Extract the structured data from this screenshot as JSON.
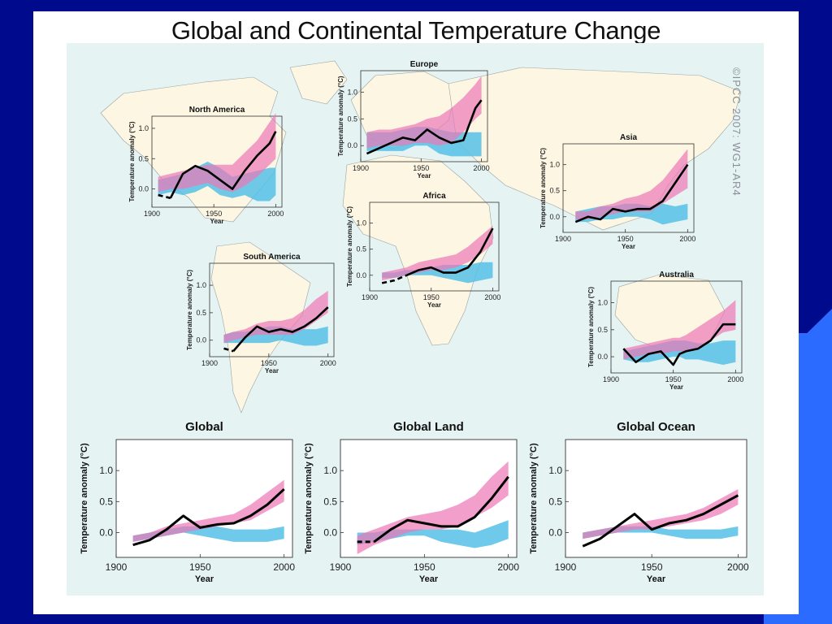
{
  "title": "Global and Continental Temperature Change",
  "credit": "©IPCC 2007: WG1-AR4",
  "colors": {
    "slide_bg": "#000a8c",
    "slide_accent": "#2b6bff",
    "map_ocean": "#e6f3f3",
    "land": "#fdf6e3",
    "natural_band": "#56bfe6",
    "all_forcing_band": "#ec77b5",
    "observations": "#000000"
  },
  "chart_data": [
    {
      "type": "line",
      "title": "North America",
      "xlabel": "Year",
      "ylabel": "Temperature anomaly (°C)",
      "xlim": [
        1900,
        2005
      ],
      "ylim": [
        -0.3,
        1.2
      ],
      "xticks": [
        1900,
        1950,
        2000
      ],
      "yticks": [
        0.0,
        0.5,
        1.0
      ],
      "x": [
        1905,
        1915,
        1925,
        1935,
        1945,
        1955,
        1965,
        1975,
        1985,
        1995,
        2000
      ],
      "series": [
        {
          "role": "observed",
          "values": [
            -0.1,
            -0.15,
            0.25,
            0.38,
            0.3,
            0.15,
            0.0,
            0.3,
            0.55,
            0.75,
            0.95
          ],
          "dashed_until": 1915
        },
        {
          "role": "natural",
          "lo": [
            -0.1,
            -0.05,
            -0.1,
            -0.05,
            0.05,
            -0.1,
            -0.15,
            -0.1,
            -0.2,
            -0.2,
            -0.1
          ],
          "hi": [
            0.15,
            0.2,
            0.25,
            0.35,
            0.45,
            0.35,
            0.2,
            0.25,
            0.3,
            0.35,
            0.35
          ]
        },
        {
          "role": "all_forcings",
          "lo": [
            -0.05,
            0.0,
            0.0,
            0.05,
            0.1,
            0.0,
            -0.05,
            0.05,
            0.2,
            0.4,
            0.5
          ],
          "hi": [
            0.2,
            0.25,
            0.3,
            0.35,
            0.4,
            0.4,
            0.4,
            0.6,
            0.8,
            1.1,
            1.25
          ]
        }
      ]
    },
    {
      "type": "line",
      "title": "Europe",
      "xlabel": "Year",
      "ylabel": "Temperature anomaly (°C)",
      "xlim": [
        1900,
        2005
      ],
      "ylim": [
        -0.3,
        1.4
      ],
      "xticks": [
        1900,
        1950,
        2000
      ],
      "yticks": [
        0.0,
        0.5,
        1.0
      ],
      "x": [
        1905,
        1915,
        1925,
        1935,
        1945,
        1955,
        1965,
        1975,
        1985,
        1995,
        2000
      ],
      "series": [
        {
          "role": "observed",
          "values": [
            -0.15,
            -0.05,
            0.05,
            0.15,
            0.1,
            0.3,
            0.15,
            0.05,
            0.1,
            0.7,
            0.85
          ],
          "dashed_until": null
        },
        {
          "role": "natural",
          "lo": [
            -0.1,
            -0.1,
            -0.1,
            -0.1,
            0.0,
            0.0,
            -0.15,
            -0.2,
            -0.2,
            -0.2,
            -0.2
          ],
          "hi": [
            0.25,
            0.25,
            0.25,
            0.3,
            0.35,
            0.35,
            0.3,
            0.25,
            0.25,
            0.25,
            0.25
          ]
        },
        {
          "role": "all_forcings",
          "lo": [
            -0.05,
            0.0,
            0.0,
            0.0,
            0.05,
            0.05,
            0.0,
            0.05,
            0.25,
            0.5,
            0.6
          ],
          "hi": [
            0.25,
            0.3,
            0.3,
            0.35,
            0.4,
            0.5,
            0.55,
            0.7,
            0.9,
            1.15,
            1.3
          ]
        }
      ]
    },
    {
      "type": "line",
      "title": "Asia",
      "xlabel": "Year",
      "ylabel": "Temperature anomaly (°C)",
      "xlim": [
        1900,
        2005
      ],
      "ylim": [
        -0.3,
        1.4
      ],
      "xticks": [
        1900,
        1950,
        2000
      ],
      "yticks": [
        0.0,
        0.5,
        1.0
      ],
      "x": [
        1910,
        1920,
        1930,
        1940,
        1950,
        1960,
        1970,
        1980,
        1990,
        2000
      ],
      "series": [
        {
          "role": "observed",
          "values": [
            -0.1,
            0.0,
            -0.05,
            0.15,
            0.1,
            0.15,
            0.15,
            0.3,
            0.65,
            1.0
          ],
          "dashed_until": null
        },
        {
          "role": "natural",
          "lo": [
            -0.1,
            -0.1,
            -0.05,
            -0.05,
            0.0,
            0.0,
            -0.05,
            -0.15,
            -0.1,
            -0.05
          ],
          "hi": [
            0.1,
            0.15,
            0.2,
            0.2,
            0.25,
            0.25,
            0.2,
            0.25,
            0.2,
            0.25
          ]
        },
        {
          "role": "all_forcings",
          "lo": [
            -0.05,
            -0.05,
            0.0,
            0.05,
            0.1,
            0.1,
            0.1,
            0.25,
            0.4,
            0.55
          ],
          "hi": [
            0.1,
            0.1,
            0.2,
            0.25,
            0.35,
            0.4,
            0.5,
            0.7,
            1.0,
            1.3
          ]
        }
      ]
    },
    {
      "type": "line",
      "title": "Africa",
      "xlabel": "Year",
      "ylabel": "Temperature anomaly (°C)",
      "xlim": [
        1900,
        2005
      ],
      "ylim": [
        -0.3,
        1.4
      ],
      "xticks": [
        1900,
        1950,
        2000
      ],
      "yticks": [
        0.0,
        0.5,
        1.0
      ],
      "x": [
        1910,
        1920,
        1930,
        1940,
        1950,
        1960,
        1970,
        1980,
        1990,
        2000
      ],
      "series": [
        {
          "role": "observed",
          "values": [
            -0.15,
            -0.1,
            0.0,
            0.1,
            0.15,
            0.05,
            0.05,
            0.15,
            0.45,
            0.9
          ],
          "dashed_until": 1930
        },
        {
          "role": "natural",
          "lo": [
            -0.05,
            -0.05,
            0.0,
            0.0,
            0.0,
            -0.05,
            -0.1,
            -0.15,
            -0.1,
            -0.05
          ],
          "hi": [
            0.05,
            0.05,
            0.1,
            0.1,
            0.15,
            0.2,
            0.2,
            0.2,
            0.25,
            0.25
          ]
        },
        {
          "role": "all_forcings",
          "lo": [
            -0.1,
            -0.05,
            0.0,
            0.05,
            0.1,
            0.1,
            0.15,
            0.25,
            0.4,
            0.6
          ],
          "hi": [
            0.05,
            0.1,
            0.15,
            0.25,
            0.3,
            0.35,
            0.4,
            0.55,
            0.75,
            0.95
          ]
        }
      ]
    },
    {
      "type": "line",
      "title": "South America",
      "xlabel": "Year",
      "ylabel": "Temperature anomaly (°C)",
      "xlim": [
        1900,
        2005
      ],
      "ylim": [
        -0.3,
        1.4
      ],
      "xticks": [
        1900,
        1950,
        2000
      ],
      "yticks": [
        0.0,
        0.5,
        1.0
      ],
      "x": [
        1912,
        1920,
        1930,
        1940,
        1950,
        1960,
        1970,
        1980,
        1990,
        2000
      ],
      "series": [
        {
          "role": "observed",
          "values": [
            -0.15,
            -0.2,
            0.05,
            0.25,
            0.15,
            0.2,
            0.15,
            0.25,
            0.4,
            0.6
          ],
          "dashed_until": 1920
        },
        {
          "role": "natural",
          "lo": [
            -0.05,
            -0.05,
            -0.05,
            -0.05,
            -0.05,
            0.0,
            -0.05,
            -0.1,
            -0.1,
            -0.05
          ],
          "hi": [
            0.1,
            0.15,
            0.15,
            0.2,
            0.25,
            0.25,
            0.2,
            0.2,
            0.2,
            0.25
          ]
        },
        {
          "role": "all_forcings",
          "lo": [
            -0.05,
            0.0,
            0.05,
            0.1,
            0.1,
            0.1,
            0.1,
            0.2,
            0.35,
            0.5
          ],
          "hi": [
            0.1,
            0.15,
            0.2,
            0.3,
            0.35,
            0.35,
            0.4,
            0.55,
            0.75,
            0.9
          ]
        }
      ]
    },
    {
      "type": "line",
      "title": "Australia",
      "xlabel": "Year",
      "ylabel": "Temperature anomaly (°C)",
      "xlim": [
        1900,
        2005
      ],
      "ylim": [
        -0.3,
        1.4
      ],
      "xticks": [
        1900,
        1950,
        2000
      ],
      "yticks": [
        0.0,
        0.5,
        1.0
      ],
      "x": [
        1910,
        1920,
        1930,
        1940,
        1950,
        1955,
        1960,
        1970,
        1980,
        1990,
        2000
      ],
      "series": [
        {
          "role": "observed",
          "values": [
            0.15,
            -0.1,
            0.05,
            0.1,
            -0.15,
            0.05,
            0.1,
            0.15,
            0.3,
            0.6,
            0.6
          ],
          "dashed_until": null
        },
        {
          "role": "natural",
          "lo": [
            -0.05,
            -0.1,
            -0.1,
            -0.05,
            0.0,
            0.0,
            -0.05,
            -0.05,
            -0.1,
            -0.15,
            -0.1
          ],
          "hi": [
            0.1,
            0.15,
            0.2,
            0.25,
            0.3,
            0.3,
            0.3,
            0.25,
            0.25,
            0.3,
            0.3
          ]
        },
        {
          "role": "all_forcings",
          "lo": [
            -0.05,
            0.0,
            0.05,
            0.05,
            0.1,
            0.1,
            0.1,
            0.15,
            0.3,
            0.45,
            0.5
          ],
          "hi": [
            0.15,
            0.2,
            0.25,
            0.3,
            0.35,
            0.35,
            0.4,
            0.55,
            0.7,
            0.85,
            1.05
          ]
        }
      ]
    },
    {
      "type": "line",
      "title": "Global",
      "xlabel": "Year",
      "ylabel": "Temperature anomaly (°C)",
      "xlim": [
        1900,
        2005
      ],
      "ylim": [
        -0.4,
        1.5
      ],
      "xticks": [
        1900,
        1950,
        2000
      ],
      "yticks": [
        0.0,
        0.5,
        1.0
      ],
      "x": [
        1910,
        1920,
        1930,
        1940,
        1950,
        1960,
        1970,
        1980,
        1990,
        2000
      ],
      "series": [
        {
          "role": "observed",
          "values": [
            -0.2,
            -0.12,
            0.05,
            0.27,
            0.08,
            0.13,
            0.15,
            0.27,
            0.45,
            0.7
          ],
          "dashed_until": null
        },
        {
          "role": "natural",
          "lo": [
            -0.15,
            -0.1,
            -0.05,
            0.0,
            -0.05,
            -0.1,
            -0.15,
            -0.15,
            -0.15,
            -0.1
          ],
          "hi": [
            -0.05,
            0.0,
            0.05,
            0.1,
            0.1,
            0.1,
            0.05,
            0.05,
            0.05,
            0.1
          ]
        },
        {
          "role": "all_forcings",
          "lo": [
            -0.15,
            -0.1,
            -0.05,
            0.0,
            0.05,
            0.1,
            0.15,
            0.2,
            0.35,
            0.5
          ],
          "hi": [
            -0.05,
            0.0,
            0.1,
            0.15,
            0.2,
            0.25,
            0.3,
            0.45,
            0.65,
            0.85
          ]
        }
      ]
    },
    {
      "type": "line",
      "title": "Global Land",
      "xlabel": "Year",
      "ylabel": "Temperature anomaly (°C)",
      "xlim": [
        1900,
        2005
      ],
      "ylim": [
        -0.4,
        1.5
      ],
      "xticks": [
        1900,
        1950,
        2000
      ],
      "yticks": [
        0.0,
        0.5,
        1.0
      ],
      "x": [
        1910,
        1920,
        1930,
        1940,
        1950,
        1960,
        1970,
        1980,
        1990,
        2000
      ],
      "series": [
        {
          "role": "observed",
          "values": [
            -0.15,
            -0.15,
            0.05,
            0.2,
            0.15,
            0.1,
            0.1,
            0.25,
            0.55,
            0.9
          ],
          "dashed_until": 1920
        },
        {
          "role": "natural",
          "lo": [
            -0.2,
            -0.15,
            -0.1,
            -0.05,
            -0.05,
            -0.15,
            -0.2,
            -0.25,
            -0.2,
            -0.1
          ],
          "hi": [
            0.0,
            0.0,
            0.05,
            0.05,
            0.05,
            0.05,
            0.05,
            0.0,
            0.1,
            0.2
          ]
        },
        {
          "role": "all_forcings",
          "lo": [
            -0.35,
            -0.2,
            -0.1,
            0.0,
            0.05,
            0.05,
            0.1,
            0.25,
            0.4,
            0.6
          ],
          "hi": [
            -0.05,
            0.05,
            0.15,
            0.25,
            0.3,
            0.35,
            0.45,
            0.6,
            0.9,
            1.15
          ]
        }
      ]
    },
    {
      "type": "line",
      "title": "Global Ocean",
      "xlabel": "Year",
      "ylabel": "Temperature anomaly (°C)",
      "xlim": [
        1900,
        2005
      ],
      "ylim": [
        -0.4,
        1.5
      ],
      "xticks": [
        1900,
        1950,
        2000
      ],
      "yticks": [
        0.0,
        0.5,
        1.0
      ],
      "x": [
        1910,
        1920,
        1930,
        1940,
        1950,
        1960,
        1970,
        1980,
        1990,
        2000
      ],
      "series": [
        {
          "role": "observed",
          "values": [
            -0.22,
            -0.1,
            0.1,
            0.3,
            0.05,
            0.15,
            0.2,
            0.3,
            0.45,
            0.6
          ],
          "dashed_until": null
        },
        {
          "role": "natural",
          "lo": [
            -0.1,
            -0.05,
            0.0,
            0.0,
            0.0,
            -0.05,
            -0.1,
            -0.1,
            -0.1,
            -0.05
          ],
          "hi": [
            0.0,
            0.05,
            0.1,
            0.1,
            0.1,
            0.05,
            0.05,
            0.05,
            0.05,
            0.1
          ]
        },
        {
          "role": "all_forcings",
          "lo": [
            -0.1,
            -0.05,
            0.0,
            0.05,
            0.05,
            0.1,
            0.15,
            0.2,
            0.3,
            0.45
          ],
          "hi": [
            0.0,
            0.05,
            0.1,
            0.15,
            0.2,
            0.25,
            0.3,
            0.4,
            0.55,
            0.7
          ]
        }
      ]
    }
  ]
}
